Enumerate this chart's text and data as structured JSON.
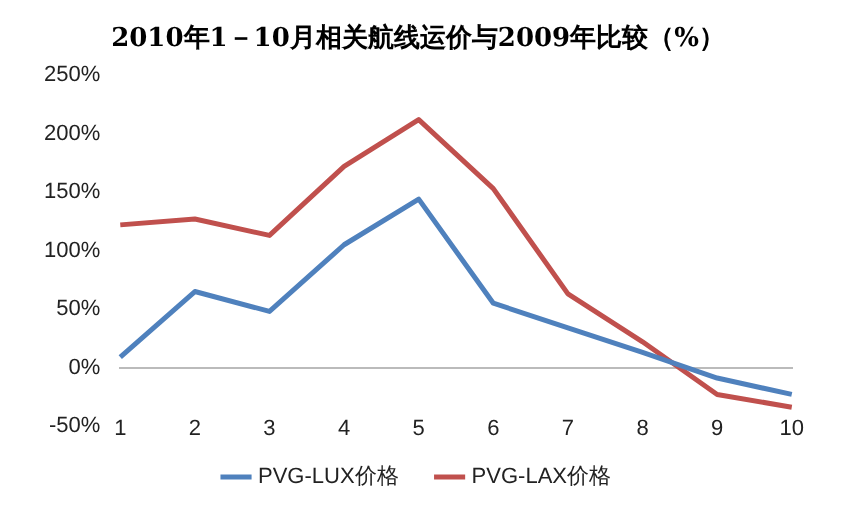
{
  "chart_data": {
    "type": "line",
    "title": "2010年1－10月相关航线运价与2009年比较（%）",
    "categories": [
      "1",
      "2",
      "3",
      "4",
      "5",
      "6",
      "7",
      "8",
      "9",
      "10"
    ],
    "series": [
      {
        "name": "PVG-LUX价格",
        "color": "#4f81bd",
        "values": [
          9,
          65,
          48,
          105,
          144,
          55,
          34,
          13,
          -9,
          -23
        ]
      },
      {
        "name": "PVG-LAX价格",
        "color": "#c0504d",
        "values": [
          122,
          127,
          113,
          172,
          212,
          153,
          63,
          22,
          -23,
          -34
        ]
      }
    ],
    "ylim": [
      -50,
      250
    ],
    "yticks": [
      {
        "value": -50,
        "label": "-50%"
      },
      {
        "value": 0,
        "label": "0%"
      },
      {
        "value": 50,
        "label": "50%"
      },
      {
        "value": 100,
        "label": "100%"
      },
      {
        "value": 150,
        "label": "150%"
      },
      {
        "value": 200,
        "label": "200%"
      },
      {
        "value": 250,
        "label": "250%"
      }
    ],
    "legend": "bottom",
    "marker": "none",
    "line_style": "solid"
  }
}
